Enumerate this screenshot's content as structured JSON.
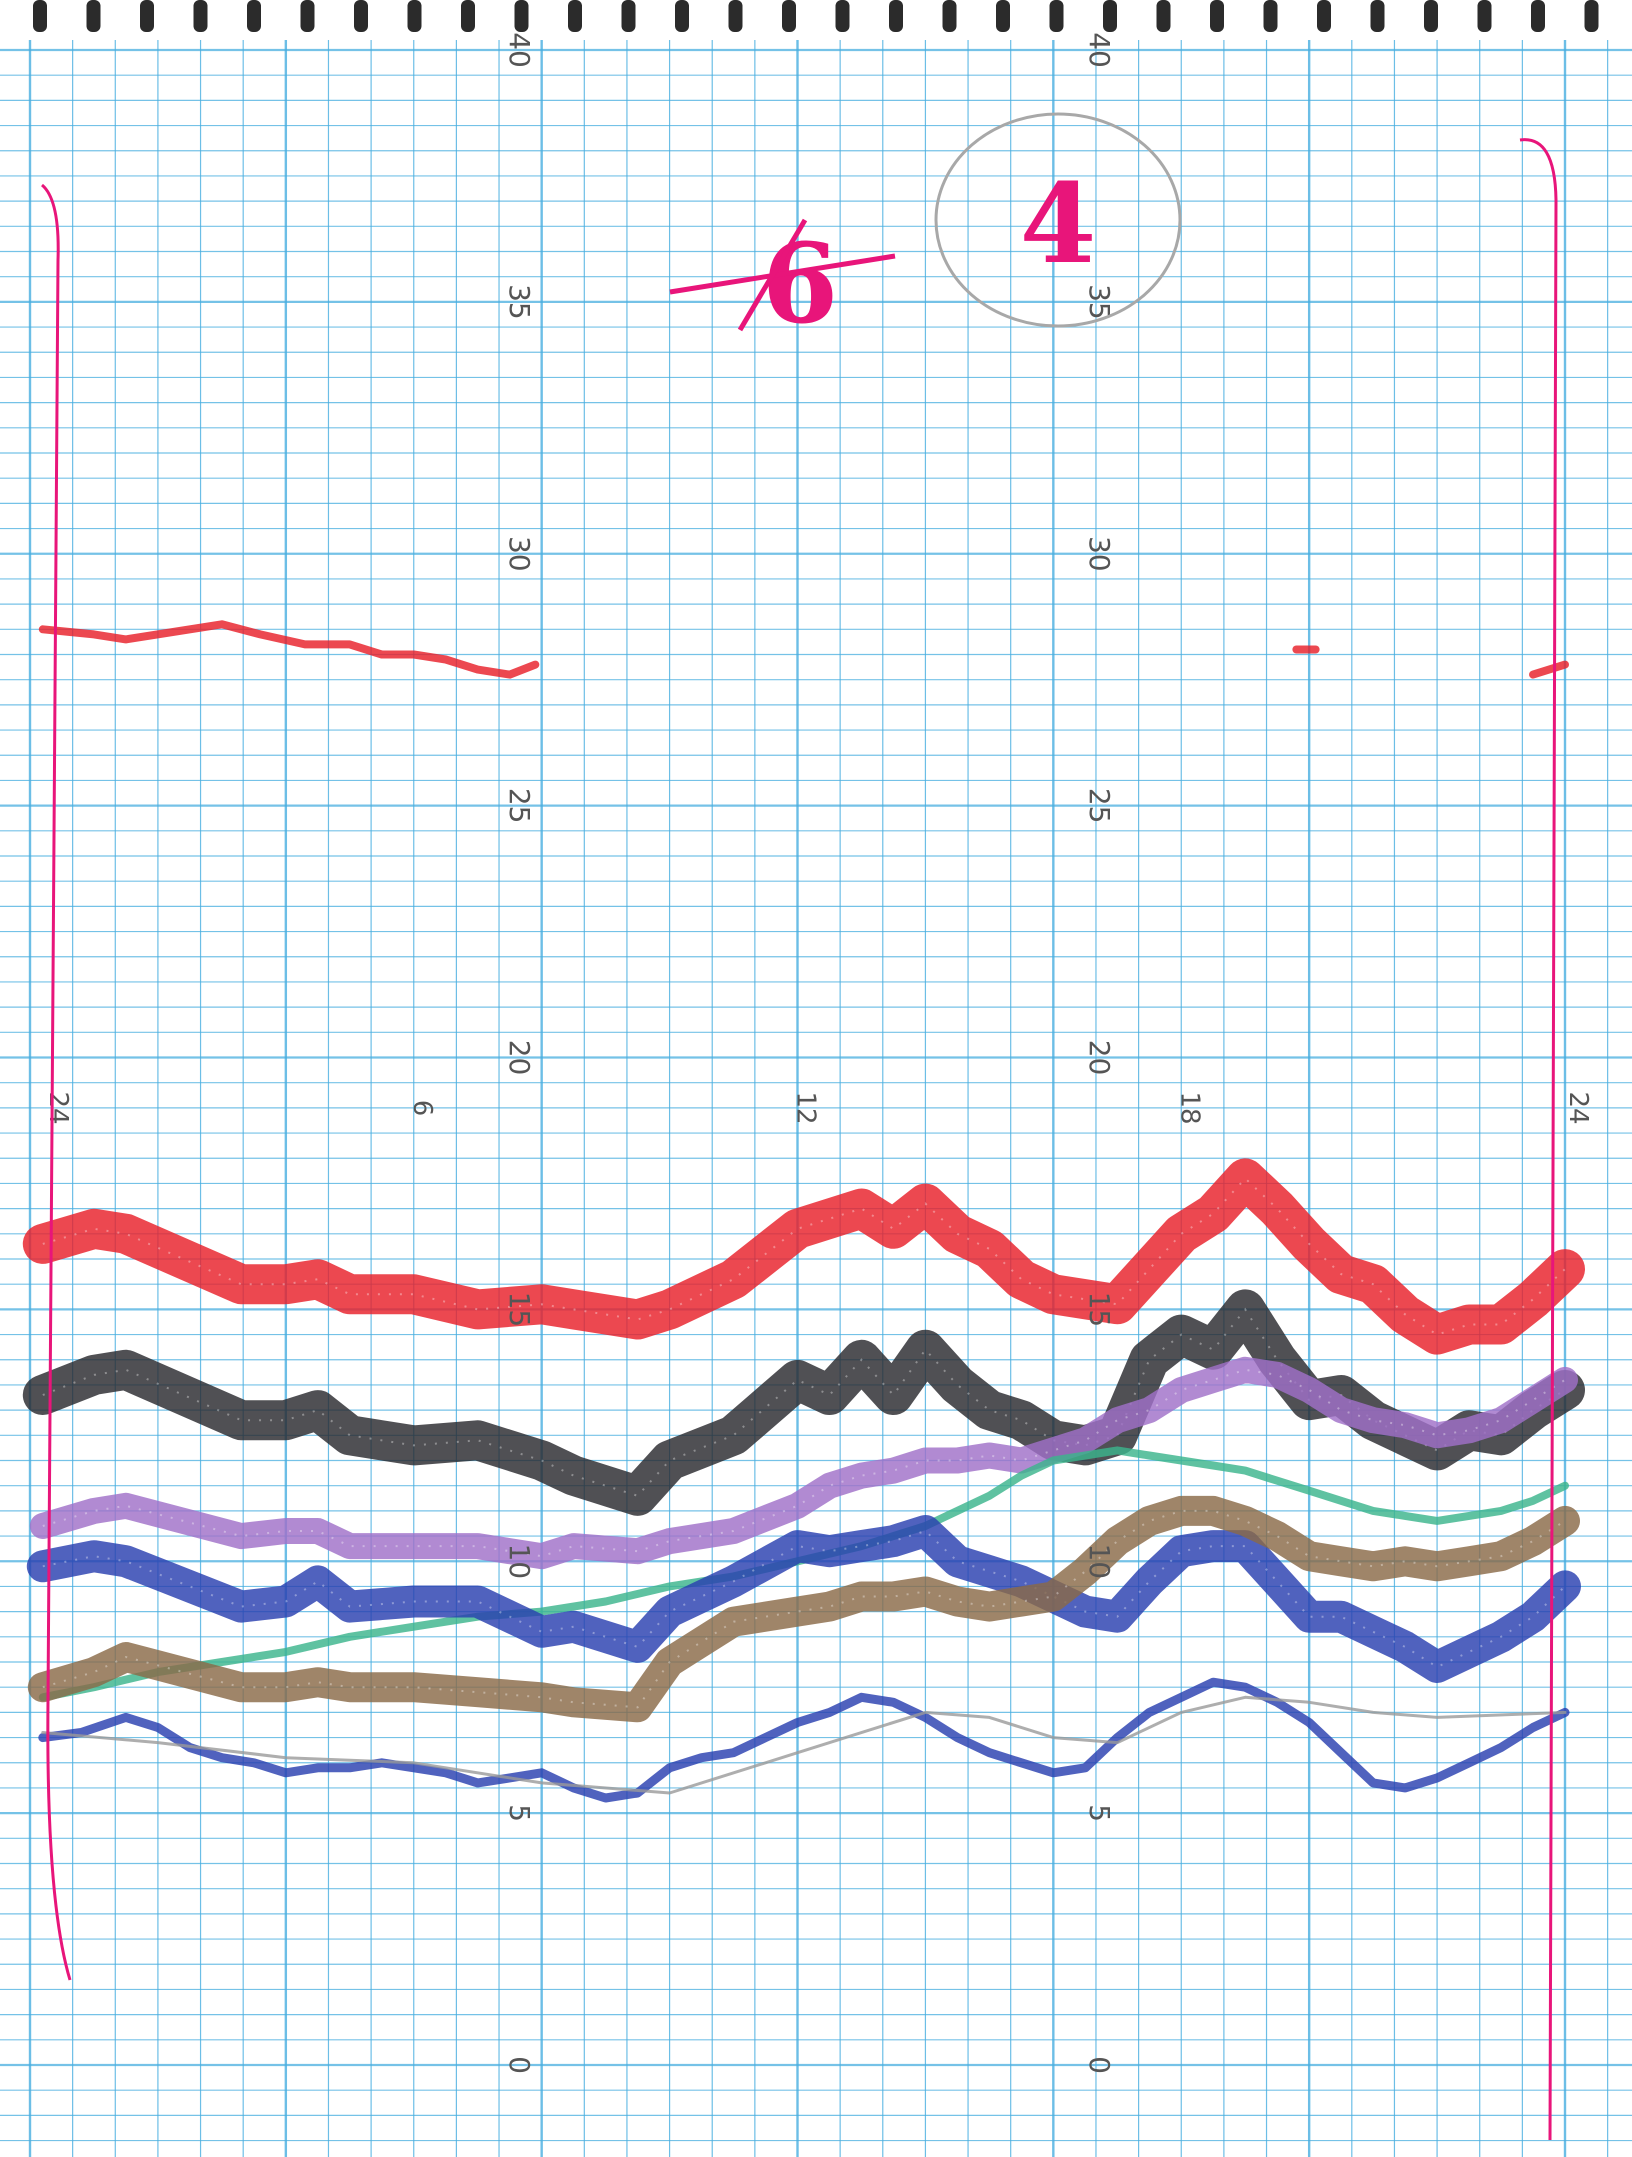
{
  "page_annotations": {
    "page_number": "4",
    "crossed_number": "6",
    "ink_color": "#e8157a"
  },
  "chart_data": {
    "type": "line",
    "title": "",
    "xlabel": "",
    "ylabel": "",
    "x_unit": "hour",
    "xlim": [
      0,
      24
    ],
    "ylim": [
      0,
      40
    ],
    "y_ticks": [
      "0",
      "5",
      "10",
      "15",
      "20",
      "25",
      "30",
      "35",
      "40"
    ],
    "x_hour_labels": [
      "24",
      "6",
      "12",
      "18",
      "24"
    ],
    "colors": {
      "red": "#e8202a",
      "black": "#2a2a2e",
      "violet": "#a070c8",
      "green": "#3cb48c",
      "brown": "#8a6a48",
      "blue": "#2a40b0",
      "grey": "#9a9a9a",
      "grid": "#48aee0",
      "frame": "#e8157a"
    },
    "series": [
      {
        "color_key": "red",
        "x": [
          0.2,
          1,
          1.5,
          3.3,
          4,
          4.5,
          5,
          6,
          7,
          8,
          8.5,
          9.5,
          10,
          11,
          12,
          12.5,
          13,
          13.5,
          14,
          14.5,
          15,
          15.5,
          16,
          16.5,
          17,
          17.5,
          18,
          18.5,
          19,
          19.5,
          20,
          20.5,
          21,
          21.5,
          22,
          22.5,
          23,
          23.5,
          24
        ],
        "y": [
          16.3,
          16.6,
          16.5,
          15.5,
          15.5,
          15.6,
          15.3,
          15.3,
          15,
          15.1,
          15,
          14.8,
          15,
          15.6,
          16.6,
          16.8,
          17,
          16.6,
          17.1,
          16.5,
          16.2,
          15.6,
          15.3,
          15.2,
          15.1,
          15.8,
          16.5,
          16.9,
          17.6,
          17,
          16.3,
          15.7,
          15.5,
          14.9,
          14.5,
          14.7,
          14.7,
          15.2,
          15.8
        ]
      },
      {
        "color_key": "black",
        "x": [
          0.2,
          1,
          1.5,
          3.3,
          4,
          4.5,
          5,
          6,
          7,
          8,
          8.5,
          9.5,
          10,
          11,
          12,
          12.5,
          13,
          13.5,
          14,
          14.5,
          15,
          15.5,
          16,
          16.5,
          17,
          17.5,
          18,
          18.5,
          19,
          19.5,
          20,
          20.5,
          21,
          21.5,
          22,
          22.5,
          23,
          23.5,
          24
        ],
        "y": [
          13.3,
          13.7,
          13.8,
          12.8,
          12.8,
          13,
          12.5,
          12.3,
          12.4,
          12,
          11.7,
          11.3,
          12,
          12.5,
          13.6,
          13.3,
          14,
          13.3,
          14.2,
          13.5,
          13,
          12.8,
          12.4,
          12.3,
          12.5,
          14,
          14.5,
          14.2,
          15,
          14,
          13.2,
          13.3,
          12.8,
          12.5,
          12.2,
          12.6,
          12.5,
          13,
          13.4
        ]
      },
      {
        "color_key": "violet",
        "x": [
          0.2,
          1,
          1.5,
          3.3,
          4,
          4.5,
          5,
          6,
          7,
          8,
          8.5,
          9.5,
          10,
          11,
          12,
          12.5,
          13,
          13.5,
          14,
          14.5,
          15,
          15.5,
          16,
          16.5,
          17,
          17.5,
          18,
          18.5,
          19,
          19.5,
          20,
          20.5,
          21,
          21.5,
          22,
          22.5,
          23,
          23.5,
          24
        ],
        "y": [
          10.7,
          11,
          11.1,
          10.5,
          10.6,
          10.6,
          10.3,
          10.3,
          10.3,
          10.1,
          10.3,
          10.2,
          10.4,
          10.6,
          11.1,
          11.5,
          11.7,
          11.8,
          12,
          12,
          12.1,
          12,
          12.2,
          12.4,
          12.8,
          13,
          13.4,
          13.6,
          13.8,
          13.7,
          13.4,
          13,
          12.8,
          12.7,
          12.5,
          12.6,
          12.8,
          13.2,
          13.6
        ]
      },
      {
        "color_key": "green",
        "x": [
          0.2,
          1,
          2,
          3,
          4,
          5,
          6,
          7,
          8,
          9,
          10,
          11,
          12,
          13,
          14,
          14.5,
          15,
          15.5,
          16,
          16.5,
          17,
          17.5,
          18,
          18.5,
          19,
          19.5,
          20,
          20.5,
          21,
          21.5,
          22,
          22.5,
          23,
          23.5,
          24
        ],
        "y": [
          7.3,
          7.5,
          7.8,
          8,
          8.2,
          8.5,
          8.7,
          8.9,
          9,
          9.2,
          9.5,
          9.7,
          10,
          10.3,
          10.7,
          11,
          11.3,
          11.7,
          12,
          12.1,
          12.2,
          12.1,
          12,
          11.9,
          11.8,
          11.6,
          11.4,
          11.2,
          11,
          10.9,
          10.8,
          10.9,
          11,
          11.2,
          11.5
        ]
      },
      {
        "color_key": "blue",
        "x": [
          0.2,
          1,
          1.5,
          3.3,
          4,
          4.5,
          5,
          6,
          7,
          8,
          8.5,
          9.5,
          10,
          11,
          12,
          12.5,
          13,
          13.5,
          14,
          14.5,
          15,
          15.5,
          16,
          16.5,
          17,
          17.5,
          18,
          18.5,
          19,
          19.5,
          20,
          20.5,
          21,
          21.5,
          22,
          22.5,
          23,
          23.5,
          24
        ],
        "y": [
          9.9,
          10.1,
          10,
          9.1,
          9.2,
          9.6,
          9.1,
          9.2,
          9.2,
          8.6,
          8.7,
          8.3,
          9,
          9.6,
          10.3,
          10.2,
          10.3,
          10.4,
          10.6,
          10,
          9.8,
          9.6,
          9.3,
          9,
          8.9,
          9.6,
          10.2,
          10.3,
          10.3,
          9.6,
          8.9,
          8.9,
          8.6,
          8.3,
          7.9,
          8.2,
          8.5,
          8.9,
          9.5
        ]
      },
      {
        "color_key": "brown",
        "x": [
          0.2,
          1,
          1.5,
          3.3,
          4,
          4.5,
          5,
          6,
          7,
          8,
          8.5,
          9.5,
          10,
          11,
          12,
          12.5,
          13,
          13.5,
          14,
          14.5,
          15,
          15.5,
          16,
          16.5,
          17,
          17.5,
          18,
          18.5,
          19,
          19.5,
          20,
          20.5,
          21,
          21.5,
          22,
          22.5,
          23,
          23.5,
          24
        ],
        "y": [
          7.5,
          7.8,
          8.1,
          7.5,
          7.5,
          7.6,
          7.5,
          7.5,
          7.4,
          7.3,
          7.2,
          7.1,
          8,
          8.8,
          9,
          9.1,
          9.3,
          9.3,
          9.4,
          9.2,
          9.1,
          9.2,
          9.3,
          9.8,
          10.4,
          10.8,
          11,
          11,
          10.8,
          10.5,
          10.1,
          10,
          9.9,
          10,
          9.9,
          10,
          10.1,
          10.4,
          10.8
        ]
      },
      {
        "color_key": "blue",
        "x": [
          0.2,
          0.8,
          1.5,
          2,
          2.5,
          3,
          3.5,
          4,
          4.5,
          5,
          5.5,
          6,
          6.5,
          7,
          7.5,
          8,
          8.5,
          9,
          9.5,
          10,
          10.5,
          11,
          11.5,
          12,
          12.5,
          13,
          13.5,
          14,
          14.5,
          15,
          15.5,
          16,
          16.5,
          17,
          17.5,
          18,
          18.5,
          19,
          19.5,
          20,
          20.5,
          21,
          21.5,
          22,
          22.5,
          23,
          23.5,
          24
        ],
        "y": [
          6.5,
          6.6,
          6.9,
          6.7,
          6.3,
          6.1,
          6,
          5.8,
          5.9,
          5.9,
          6,
          5.9,
          5.8,
          5.6,
          5.7,
          5.8,
          5.5,
          5.3,
          5.4,
          5.9,
          6.1,
          6.2,
          6.5,
          6.8,
          7,
          7.3,
          7.2,
          6.9,
          6.5,
          6.2,
          6,
          5.8,
          5.9,
          6.5,
          7,
          7.3,
          7.6,
          7.5,
          7.2,
          6.8,
          6.2,
          5.6,
          5.5,
          5.7,
          6,
          6.3,
          6.7,
          7
        ]
      },
      {
        "color_key": "grey",
        "x": [
          0.2,
          2,
          4,
          6,
          8,
          10,
          12,
          14,
          15,
          16,
          17,
          18,
          19,
          20,
          21,
          22,
          24
        ],
        "y": [
          6.6,
          6.4,
          6.1,
          6.0,
          5.6,
          5.4,
          6.2,
          7.0,
          6.9,
          6.5,
          6.4,
          7.0,
          7.3,
          7.2,
          7.0,
          6.9,
          7.0
        ]
      },
      {
        "color_key": "red",
        "x": [
          0.2,
          1,
          1.5,
          3,
          3.6,
          4.3,
          5,
          5.5,
          6,
          6.5,
          7,
          7.5,
          7.9
        ],
        "y": [
          28.5,
          28.4,
          28.3,
          28.6,
          28.4,
          28.2,
          28.2,
          28,
          28,
          27.9,
          27.7,
          27.6,
          27.8
        ]
      },
      {
        "color_key": "red",
        "x": [
          19.8,
          20.1
        ],
        "y": [
          28.1,
          28.1
        ]
      },
      {
        "color_key": "red",
        "x": [
          23.5,
          24
        ],
        "y": [
          27.6,
          27.8
        ]
      }
    ]
  }
}
